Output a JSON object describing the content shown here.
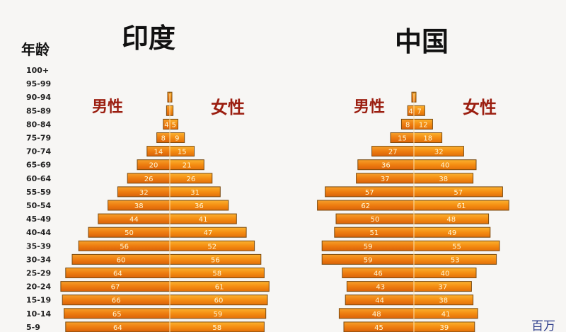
{
  "header": {
    "age_label": "年龄"
  },
  "unit_label": "百万",
  "chart_data": [
    {
      "type": "bar",
      "title": "印度",
      "male_label": "男性",
      "female_label": "女性",
      "categories": [
        "100+",
        "95-99",
        "90-94",
        "85-89",
        "80-84",
        "75-79",
        "70-74",
        "65-69",
        "60-64",
        "55-59",
        "50-54",
        "45-49",
        "40-44",
        "35-39",
        "30-34",
        "25-29",
        "20-24",
        "15-19",
        "10-14",
        "5-9"
      ],
      "series": [
        {
          "name": "男性",
          "values": [
            0,
            0,
            1,
            2,
            4,
            8,
            14,
            20,
            26,
            32,
            38,
            44,
            50,
            56,
            60,
            64,
            67,
            66,
            65,
            64
          ]
        },
        {
          "name": "女性",
          "values": [
            0,
            0,
            1,
            2,
            5,
            9,
            15,
            21,
            26,
            31,
            36,
            41,
            47,
            52,
            56,
            58,
            61,
            60,
            59,
            58
          ]
        }
      ]
    },
    {
      "type": "bar",
      "title": "中国",
      "male_label": "男性",
      "female_label": "女性",
      "categories": [
        "100+",
        "95-99",
        "90-94",
        "85-89",
        "80-84",
        "75-79",
        "70-74",
        "65-69",
        "60-64",
        "55-59",
        "50-54",
        "45-49",
        "40-44",
        "35-39",
        "30-34",
        "25-29",
        "20-24",
        "15-19",
        "10-14",
        "5-9"
      ],
      "series": [
        {
          "name": "男性",
          "values": [
            0,
            0,
            1,
            4,
            8,
            15,
            27,
            36,
            37,
            57,
            62,
            50,
            51,
            59,
            59,
            46,
            43,
            44,
            48,
            45
          ]
        },
        {
          "name": "女性",
          "values": [
            0,
            0,
            1,
            7,
            12,
            18,
            32,
            40,
            38,
            57,
            61,
            48,
            49,
            55,
            53,
            40,
            37,
            38,
            41,
            39
          ]
        }
      ]
    }
  ]
}
